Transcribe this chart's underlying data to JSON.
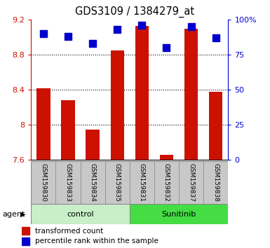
{
  "title": "GDS3109 / 1384279_at",
  "samples": [
    "GSM159830",
    "GSM159833",
    "GSM159834",
    "GSM159835",
    "GSM159831",
    "GSM159832",
    "GSM159837",
    "GSM159838"
  ],
  "transformed_count": [
    8.42,
    8.28,
    7.95,
    8.85,
    9.13,
    7.66,
    9.1,
    8.38
  ],
  "percentile_rank": [
    90,
    88,
    83,
    93,
    96,
    80,
    95,
    87
  ],
  "ylim_left": [
    7.6,
    9.2
  ],
  "ylim_right": [
    0,
    100
  ],
  "yticks_left": [
    7.6,
    8.0,
    8.4,
    8.8,
    9.2
  ],
  "yticks_right": [
    0,
    25,
    50,
    75,
    100
  ],
  "ytick_labels_left": [
    "7.6",
    "8",
    "8.4",
    "8.8",
    "9.2"
  ],
  "ytick_labels_right": [
    "0",
    "25",
    "50",
    "75",
    "100%"
  ],
  "bar_color": "#cc1100",
  "dot_color": "#0000cc",
  "control_bg_light": "#c8f0c8",
  "sunitinib_bg_dark": "#44dd44",
  "label_bg": "#c8c8c8",
  "group_control_label": "control",
  "group_sunitinib_label": "Sunitinib",
  "agent_label": "agent",
  "legend_bar": "transformed count",
  "legend_dot": "percentile rank within the sample",
  "bar_width": 0.55,
  "dot_size": 45,
  "grid_lines": [
    8.0,
    8.4,
    8.8
  ],
  "n_control": 4,
  "n_sunitinib": 4
}
